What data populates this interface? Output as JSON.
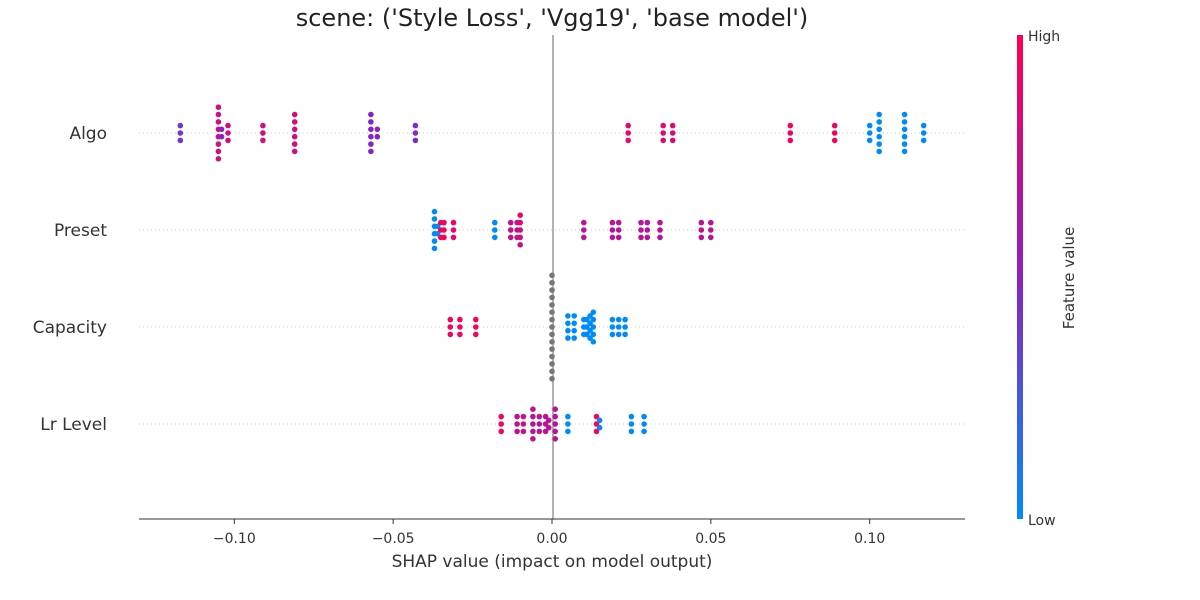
{
  "chart_data": {
    "type": "scatter",
    "title": "scene: ('Style Loss', 'Vgg19', 'base model')",
    "xlabel": "SHAP value (impact on model output)",
    "xlim": [
      -0.13,
      0.13
    ],
    "xticks": [
      -0.1,
      -0.05,
      0.0,
      0.05,
      0.1
    ],
    "xtick_labels": [
      "−0.10",
      "−0.05",
      "0.00",
      "0.05",
      "0.10"
    ],
    "colorbar": {
      "title": "Feature value",
      "high_label": "High",
      "low_label": "Low",
      "low_color": "#008bfb",
      "high_color": "#ff0051",
      "missing_color": "#777777"
    },
    "features": [
      {
        "name": "Algo",
        "points": [
          {
            "x": -0.117,
            "v": 0.4
          },
          {
            "x": -0.117,
            "v": 0.4
          },
          {
            "x": -0.117,
            "v": 0.4
          },
          {
            "x": -0.105,
            "v": 0.8
          },
          {
            "x": -0.105,
            "v": 0.8
          },
          {
            "x": -0.105,
            "v": 0.8
          },
          {
            "x": -0.105,
            "v": 0.8
          },
          {
            "x": -0.105,
            "v": 0.8
          },
          {
            "x": -0.105,
            "v": 0.8
          },
          {
            "x": -0.105,
            "v": 0.8
          },
          {
            "x": -0.105,
            "v": 0.8
          },
          {
            "x": -0.104,
            "v": 0.5
          },
          {
            "x": -0.104,
            "v": 0.5
          },
          {
            "x": -0.102,
            "v": 0.8
          },
          {
            "x": -0.102,
            "v": 0.8
          },
          {
            "x": -0.102,
            "v": 0.8
          },
          {
            "x": -0.091,
            "v": 0.8
          },
          {
            "x": -0.091,
            "v": 0.8
          },
          {
            "x": -0.091,
            "v": 0.8
          },
          {
            "x": -0.081,
            "v": 0.8
          },
          {
            "x": -0.081,
            "v": 0.8
          },
          {
            "x": -0.081,
            "v": 0.8
          },
          {
            "x": -0.081,
            "v": 0.8
          },
          {
            "x": -0.081,
            "v": 0.8
          },
          {
            "x": -0.081,
            "v": 0.8
          },
          {
            "x": -0.057,
            "v": 0.5
          },
          {
            "x": -0.057,
            "v": 0.5
          },
          {
            "x": -0.057,
            "v": 0.5
          },
          {
            "x": -0.057,
            "v": 0.5
          },
          {
            "x": -0.057,
            "v": 0.5
          },
          {
            "x": -0.057,
            "v": 0.5
          },
          {
            "x": -0.055,
            "v": 0.5
          },
          {
            "x": -0.055,
            "v": 0.5
          },
          {
            "x": -0.043,
            "v": 0.45
          },
          {
            "x": -0.043,
            "v": 0.45
          },
          {
            "x": -0.043,
            "v": 0.45
          },
          {
            "x": 0.024,
            "v": 0.9
          },
          {
            "x": 0.024,
            "v": 0.9
          },
          {
            "x": 0.024,
            "v": 0.9
          },
          {
            "x": 0.035,
            "v": 0.85
          },
          {
            "x": 0.035,
            "v": 0.85
          },
          {
            "x": 0.035,
            "v": 0.85
          },
          {
            "x": 0.038,
            "v": 0.85
          },
          {
            "x": 0.038,
            "v": 0.85
          },
          {
            "x": 0.038,
            "v": 0.85
          },
          {
            "x": 0.075,
            "v": 0.95
          },
          {
            "x": 0.075,
            "v": 0.95
          },
          {
            "x": 0.075,
            "v": 0.95
          },
          {
            "x": 0.089,
            "v": 0.95
          },
          {
            "x": 0.089,
            "v": 0.95
          },
          {
            "x": 0.089,
            "v": 0.95
          },
          {
            "x": 0.1,
            "v": 0.0
          },
          {
            "x": 0.1,
            "v": 0.0
          },
          {
            "x": 0.1,
            "v": 0.0
          },
          {
            "x": 0.103,
            "v": 0.0
          },
          {
            "x": 0.103,
            "v": 0.0
          },
          {
            "x": 0.103,
            "v": 0.0
          },
          {
            "x": 0.103,
            "v": 0.0
          },
          {
            "x": 0.103,
            "v": 0.0
          },
          {
            "x": 0.103,
            "v": 0.0
          },
          {
            "x": 0.111,
            "v": 0.0
          },
          {
            "x": 0.111,
            "v": 0.0
          },
          {
            "x": 0.111,
            "v": 0.0
          },
          {
            "x": 0.111,
            "v": 0.0
          },
          {
            "x": 0.111,
            "v": 0.0
          },
          {
            "x": 0.111,
            "v": 0.0
          },
          {
            "x": 0.117,
            "v": 0.0
          },
          {
            "x": 0.117,
            "v": 0.0
          },
          {
            "x": 0.117,
            "v": 0.0
          }
        ]
      },
      {
        "name": "Preset",
        "points": [
          {
            "x": -0.037,
            "v": 0.0
          },
          {
            "x": -0.037,
            "v": 0.0
          },
          {
            "x": -0.037,
            "v": 0.0
          },
          {
            "x": -0.037,
            "v": 0.0
          },
          {
            "x": -0.037,
            "v": 0.0
          },
          {
            "x": -0.037,
            "v": 0.0
          },
          {
            "x": -0.036,
            "v": 0.0
          },
          {
            "x": -0.036,
            "v": 0.0
          },
          {
            "x": -0.035,
            "v": 0.95
          },
          {
            "x": -0.035,
            "v": 0.95
          },
          {
            "x": -0.035,
            "v": 0.95
          },
          {
            "x": -0.034,
            "v": 0.95
          },
          {
            "x": -0.034,
            "v": 0.95
          },
          {
            "x": -0.034,
            "v": 0.95
          },
          {
            "x": -0.031,
            "v": 0.9
          },
          {
            "x": -0.031,
            "v": 0.9
          },
          {
            "x": -0.031,
            "v": 0.9
          },
          {
            "x": -0.018,
            "v": 0.0
          },
          {
            "x": -0.018,
            "v": 0.0
          },
          {
            "x": -0.018,
            "v": 0.0
          },
          {
            "x": -0.013,
            "v": 0.75
          },
          {
            "x": -0.013,
            "v": 0.75
          },
          {
            "x": -0.013,
            "v": 0.75
          },
          {
            "x": -0.011,
            "v": 0.75
          },
          {
            "x": -0.011,
            "v": 0.75
          },
          {
            "x": -0.011,
            "v": 0.75
          },
          {
            "x": -0.01,
            "v": 0.9
          },
          {
            "x": -0.01,
            "v": 0.9
          },
          {
            "x": -0.01,
            "v": 0.75
          },
          {
            "x": -0.01,
            "v": 0.75
          },
          {
            "x": -0.01,
            "v": 0.75
          },
          {
            "x": 0.01,
            "v": 0.7
          },
          {
            "x": 0.01,
            "v": 0.7
          },
          {
            "x": 0.01,
            "v": 0.7
          },
          {
            "x": 0.019,
            "v": 0.7
          },
          {
            "x": 0.019,
            "v": 0.7
          },
          {
            "x": 0.019,
            "v": 0.7
          },
          {
            "x": 0.021,
            "v": 0.7
          },
          {
            "x": 0.021,
            "v": 0.7
          },
          {
            "x": 0.021,
            "v": 0.7
          },
          {
            "x": 0.028,
            "v": 0.7
          },
          {
            "x": 0.028,
            "v": 0.7
          },
          {
            "x": 0.028,
            "v": 0.7
          },
          {
            "x": 0.03,
            "v": 0.7
          },
          {
            "x": 0.03,
            "v": 0.7
          },
          {
            "x": 0.03,
            "v": 0.7
          },
          {
            "x": 0.034,
            "v": 0.7
          },
          {
            "x": 0.034,
            "v": 0.7
          },
          {
            "x": 0.034,
            "v": 0.7
          },
          {
            "x": 0.047,
            "v": 0.7
          },
          {
            "x": 0.047,
            "v": 0.7
          },
          {
            "x": 0.047,
            "v": 0.7
          },
          {
            "x": 0.05,
            "v": 0.7
          },
          {
            "x": 0.05,
            "v": 0.7
          },
          {
            "x": 0.05,
            "v": 0.7
          }
        ]
      },
      {
        "name": "Capacity",
        "points": [
          {
            "x": -0.032,
            "v": 0.95
          },
          {
            "x": -0.032,
            "v": 0.95
          },
          {
            "x": -0.032,
            "v": 0.95
          },
          {
            "x": -0.029,
            "v": 0.95
          },
          {
            "x": -0.029,
            "v": 0.95
          },
          {
            "x": -0.029,
            "v": 0.95
          },
          {
            "x": -0.024,
            "v": 0.95
          },
          {
            "x": -0.024,
            "v": 0.95
          },
          {
            "x": -0.024,
            "v": 0.95
          },
          {
            "x": 0.0,
            "v": null
          },
          {
            "x": 0.0,
            "v": null
          },
          {
            "x": 0.0,
            "v": null
          },
          {
            "x": 0.0,
            "v": null
          },
          {
            "x": 0.0,
            "v": null
          },
          {
            "x": 0.0,
            "v": null
          },
          {
            "x": 0.0,
            "v": null
          },
          {
            "x": 0.0,
            "v": null
          },
          {
            "x": 0.0,
            "v": null
          },
          {
            "x": 0.0,
            "v": null
          },
          {
            "x": 0.0,
            "v": null
          },
          {
            "x": 0.0,
            "v": null
          },
          {
            "x": 0.0,
            "v": null
          },
          {
            "x": 0.0,
            "v": null
          },
          {
            "x": 0.0,
            "v": null
          },
          {
            "x": 0.005,
            "v": 0.0
          },
          {
            "x": 0.005,
            "v": 0.0
          },
          {
            "x": 0.005,
            "v": 0.0
          },
          {
            "x": 0.005,
            "v": 0.0
          },
          {
            "x": 0.007,
            "v": 0.0
          },
          {
            "x": 0.007,
            "v": 0.0
          },
          {
            "x": 0.007,
            "v": 0.0
          },
          {
            "x": 0.007,
            "v": 0.0
          },
          {
            "x": 0.01,
            "v": 0.0
          },
          {
            "x": 0.01,
            "v": 0.0
          },
          {
            "x": 0.01,
            "v": 0.0
          },
          {
            "x": 0.011,
            "v": 0.0
          },
          {
            "x": 0.011,
            "v": 0.0
          },
          {
            "x": 0.011,
            "v": 0.0
          },
          {
            "x": 0.012,
            "v": 0.0
          },
          {
            "x": 0.012,
            "v": 0.0
          },
          {
            "x": 0.012,
            "v": 0.0
          },
          {
            "x": 0.012,
            "v": 0.0
          },
          {
            "x": 0.013,
            "v": 0.0
          },
          {
            "x": 0.013,
            "v": 0.0
          },
          {
            "x": 0.013,
            "v": 0.0
          },
          {
            "x": 0.013,
            "v": 0.0
          },
          {
            "x": 0.013,
            "v": 0.0
          },
          {
            "x": 0.019,
            "v": 0.0
          },
          {
            "x": 0.019,
            "v": 0.0
          },
          {
            "x": 0.019,
            "v": 0.0
          },
          {
            "x": 0.021,
            "v": 0.0
          },
          {
            "x": 0.021,
            "v": 0.0
          },
          {
            "x": 0.021,
            "v": 0.0
          },
          {
            "x": 0.023,
            "v": 0.0
          },
          {
            "x": 0.023,
            "v": 0.0
          },
          {
            "x": 0.023,
            "v": 0.0
          }
        ]
      },
      {
        "name": "Lr Level",
        "points": [
          {
            "x": -0.016,
            "v": 0.95
          },
          {
            "x": -0.016,
            "v": 0.95
          },
          {
            "x": -0.016,
            "v": 0.95
          },
          {
            "x": -0.011,
            "v": 0.75
          },
          {
            "x": -0.011,
            "v": 0.75
          },
          {
            "x": -0.011,
            "v": 0.75
          },
          {
            "x": -0.009,
            "v": 0.75
          },
          {
            "x": -0.009,
            "v": 0.75
          },
          {
            "x": -0.009,
            "v": 0.75
          },
          {
            "x": -0.006,
            "v": 0.7
          },
          {
            "x": -0.006,
            "v": 0.7
          },
          {
            "x": -0.006,
            "v": 0.7
          },
          {
            "x": -0.006,
            "v": 0.7
          },
          {
            "x": -0.006,
            "v": 0.7
          },
          {
            "x": -0.004,
            "v": 0.7
          },
          {
            "x": -0.004,
            "v": 0.7
          },
          {
            "x": -0.004,
            "v": 0.7
          },
          {
            "x": -0.002,
            "v": 0.7
          },
          {
            "x": -0.002,
            "v": 0.7
          },
          {
            "x": -0.002,
            "v": 0.7
          },
          {
            "x": -0.001,
            "v": 0.7
          },
          {
            "x": -0.001,
            "v": 0.7
          },
          {
            "x": 0.001,
            "v": 0.7
          },
          {
            "x": 0.001,
            "v": 0.7
          },
          {
            "x": 0.001,
            "v": 0.7
          },
          {
            "x": 0.001,
            "v": 0.7
          },
          {
            "x": 0.001,
            "v": 0.7
          },
          {
            "x": 0.005,
            "v": 0.0
          },
          {
            "x": 0.005,
            "v": 0.0
          },
          {
            "x": 0.005,
            "v": 0.0
          },
          {
            "x": 0.014,
            "v": 0.95
          },
          {
            "x": 0.014,
            "v": 0.95
          },
          {
            "x": 0.014,
            "v": 0.95
          },
          {
            "x": 0.015,
            "v": 0.0
          },
          {
            "x": 0.015,
            "v": 0.0
          },
          {
            "x": 0.025,
            "v": 0.0
          },
          {
            "x": 0.025,
            "v": 0.0
          },
          {
            "x": 0.025,
            "v": 0.0
          },
          {
            "x": 0.029,
            "v": 0.0
          },
          {
            "x": 0.029,
            "v": 0.0
          },
          {
            "x": 0.029,
            "v": 0.0
          }
        ]
      }
    ]
  }
}
